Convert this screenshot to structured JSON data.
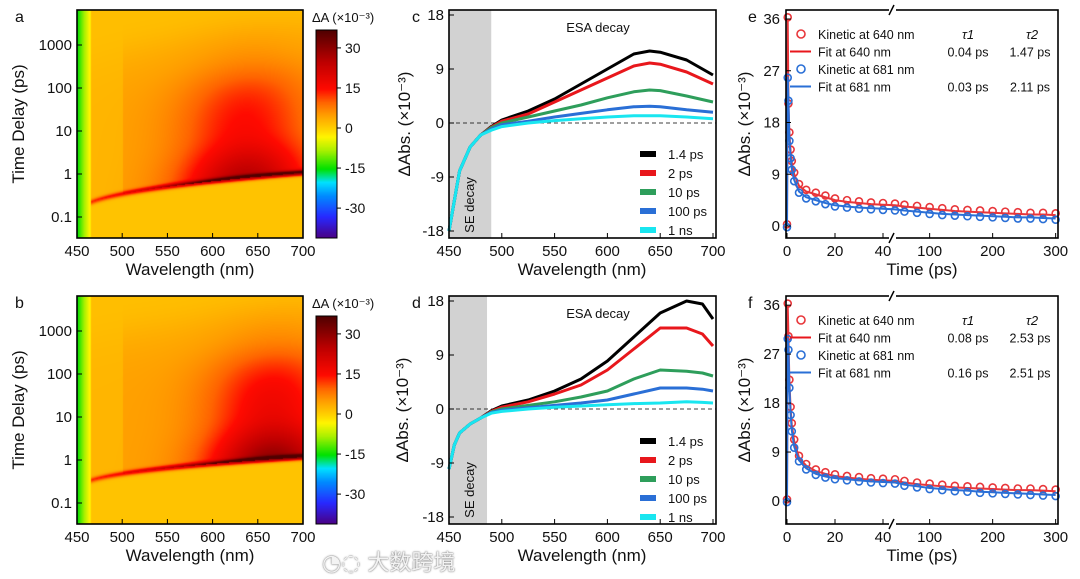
{
  "watermark": {
    "logo_text": "大数跨境"
  },
  "chart_data": [
    {
      "panel": "a",
      "type": "heatmap",
      "xlabel": "Wavelength (nm)",
      "ylabel": "Time Delay (ps)",
      "yscale": "log",
      "xlim": [
        450,
        700
      ],
      "ylim": [
        0.03,
        6500
      ],
      "xticks": [
        "450",
        "500",
        "550",
        "600",
        "650",
        "700"
      ],
      "yticks": [
        "1000",
        "100",
        "10",
        "1",
        "0.1"
      ],
      "ytick_values": [
        1000,
        100,
        10,
        1,
        0.1
      ],
      "colorbar": {
        "label": "ΔA (×10⁻³)",
        "range": [
          -41,
          37
        ],
        "ticks": [
          "30",
          "15",
          "0",
          "-15",
          "-30"
        ],
        "tick_values": [
          30,
          15,
          0,
          -15,
          -30
        ]
      },
      "features": {
        "chirp_start": [
          455,
          0.15
        ],
        "chirp_end": [
          700,
          1.1
        ],
        "esa_peak_nm": 635,
        "esa_peak_value": 25
      }
    },
    {
      "panel": "b",
      "type": "heatmap",
      "xlabel": "Wavelength (nm)",
      "ylabel": "Time Delay (ps)",
      "yscale": "log",
      "xlim": [
        450,
        700
      ],
      "ylim": [
        0.03,
        6500
      ],
      "xticks": [
        "450",
        "500",
        "550",
        "600",
        "650",
        "700"
      ],
      "yticks": [
        "1000",
        "100",
        "10",
        "1",
        "0.1"
      ],
      "ytick_values": [
        1000,
        100,
        10,
        1,
        0.1
      ],
      "colorbar": {
        "label": "ΔA (×10⁻³)",
        "range": [
          -41,
          37
        ],
        "ticks": [
          "30",
          "15",
          "0",
          "-15",
          "-30"
        ],
        "tick_values": [
          30,
          15,
          0,
          -15,
          -30
        ]
      },
      "features": {
        "chirp_start": [
          455,
          0.25
        ],
        "chirp_end": [
          700,
          1.2
        ],
        "esa_peak_nm": 665,
        "esa_peak_value": 30
      }
    },
    {
      "panel": "c",
      "type": "line",
      "xlabel": "Wavelength (nm)",
      "ylabel": "ΔAbs. (×10⁻³)",
      "xlim": [
        450,
        700
      ],
      "ylim": [
        -19.2,
        18.8
      ],
      "xticks": [
        "450",
        "500",
        "550",
        "600",
        "650",
        "700"
      ],
      "xtick_values": [
        450,
        500,
        550,
        600,
        650,
        700
      ],
      "yticks": [
        "18",
        "9",
        "0",
        "-9",
        "-18"
      ],
      "ytick_values": [
        18,
        9,
        0,
        -9,
        -18
      ],
      "annotations": {
        "esa": "ESA decay",
        "se": "SE decay",
        "se_region": [
          450,
          490
        ]
      },
      "x": [
        450,
        455,
        460,
        470,
        480,
        490,
        500,
        525,
        550,
        575,
        600,
        625,
        640,
        650,
        675,
        700
      ],
      "series": [
        {
          "name": "1.4 ps",
          "color": "#000000",
          "values": [
            -18,
            -13,
            -8,
            -4,
            -2,
            -0.6,
            0.5,
            2,
            4,
            6.5,
            9,
            11.5,
            12,
            11.8,
            10.5,
            8
          ]
        },
        {
          "name": "2 ps",
          "color": "#e8171c",
          "values": [
            -18,
            -13,
            -8,
            -4,
            -2,
            -0.7,
            0.3,
            1.5,
            3.5,
            5.5,
            7.5,
            9.5,
            10,
            9.8,
            8.5,
            6.5
          ]
        },
        {
          "name": "10 ps",
          "color": "#2e9e5b",
          "values": [
            -18,
            -13,
            -8,
            -4,
            -2,
            -0.8,
            0,
            1,
            2,
            3,
            4.2,
            5.2,
            5.5,
            5.4,
            4.5,
            3.5
          ]
        },
        {
          "name": "100 ps",
          "color": "#2a6fd6",
          "values": [
            -18,
            -13,
            -8,
            -4,
            -2,
            -1,
            -0.3,
            0.3,
            1,
            1.6,
            2.2,
            2.7,
            2.8,
            2.7,
            2.2,
            1.8
          ]
        },
        {
          "name": "1 ns",
          "color": "#19e6f0",
          "values": [
            -18,
            -13,
            -8,
            -4,
            -2,
            -1.2,
            -0.6,
            0,
            0.4,
            0.7,
            1,
            1.2,
            1.2,
            1.2,
            1,
            0.7
          ]
        }
      ]
    },
    {
      "panel": "d",
      "type": "line",
      "xlabel": "Wavelength (nm)",
      "ylabel": "ΔAbs. (×10⁻³)",
      "xlim": [
        450,
        700
      ],
      "ylim": [
        -19.2,
        18.8
      ],
      "xticks": [
        "450",
        "500",
        "550",
        "600",
        "650",
        "700"
      ],
      "xtick_values": [
        450,
        500,
        550,
        600,
        650,
        700
      ],
      "yticks": [
        "18",
        "9",
        "0",
        "-9",
        "-18"
      ],
      "ytick_values": [
        18,
        9,
        0,
        -9,
        -18
      ],
      "annotations": {
        "esa": "ESA decay",
        "se": "SE decay",
        "se_region": [
          450,
          486
        ]
      },
      "x": [
        450,
        455,
        460,
        470,
        480,
        490,
        500,
        525,
        550,
        575,
        600,
        625,
        650,
        675,
        690,
        700
      ],
      "series": [
        {
          "name": "1.4 ps",
          "color": "#000000",
          "values": [
            -10,
            -6,
            -4,
            -2.5,
            -1.5,
            -0.3,
            0.5,
            1.5,
            3,
            5,
            8,
            12,
            16,
            18,
            17.5,
            15
          ]
        },
        {
          "name": "2 ps",
          "color": "#e8171c",
          "values": [
            -10,
            -6,
            -4,
            -2.5,
            -1.5,
            -0.4,
            0.3,
            1.2,
            2.5,
            4,
            6.5,
            10,
            13.5,
            13.5,
            12.5,
            10.5
          ]
        },
        {
          "name": "10 ps",
          "color": "#2e9e5b",
          "values": [
            -10,
            -6,
            -4,
            -2.5,
            -1.5,
            -0.5,
            0,
            0.6,
            1.2,
            2,
            3,
            5,
            6.5,
            6.3,
            6,
            5.5
          ]
        },
        {
          "name": "100 ps",
          "color": "#2a6fd6",
          "values": [
            -10,
            -6,
            -4,
            -2.5,
            -1.5,
            -0.6,
            -0.2,
            0.2,
            0.6,
            1,
            1.5,
            2.5,
            3.5,
            3.5,
            3.3,
            3
          ]
        },
        {
          "name": "1 ns",
          "color": "#19e6f0",
          "values": [
            -10,
            -6,
            -4,
            -2.5,
            -1.5,
            -0.7,
            -0.4,
            0,
            0.3,
            0.5,
            0.7,
            0.9,
            1,
            1.2,
            1.1,
            1
          ]
        }
      ]
    },
    {
      "panel": "e",
      "type": "scatter",
      "xlabel": "Time (ps)",
      "ylabel": "ΔAbs. (×10⁻³)",
      "xlim": [
        0,
        300
      ],
      "x_break": [
        45,
        45
      ],
      "ylim": [
        -2,
        37.5
      ],
      "xticks": [
        "0",
        "20",
        "40",
        "100",
        "200",
        "300"
      ],
      "xtick_values": [
        0,
        20,
        40,
        100,
        200,
        300
      ],
      "yticks": [
        "36",
        "27",
        "18",
        "9",
        "0"
      ],
      "ytick_values": [
        36,
        27,
        18,
        9,
        0
      ],
      "legend": {
        "tau1_header": "τ1",
        "tau2_header": "τ2",
        "entries": [
          {
            "label": "Kinetic at 640 nm",
            "kind": "marker",
            "color": "#e8363a"
          },
          {
            "label": "Fit at 640 nm",
            "kind": "line",
            "color": "#e8171c",
            "tau1": "0.04 ps",
            "tau2": "1.47 ps"
          },
          {
            "label": "Kinetic at 681 nm",
            "kind": "marker",
            "color": "#2a6fd6"
          },
          {
            "label": "Fit at 681 nm",
            "kind": "line",
            "color": "#2a6fd6",
            "tau1": "0.03 ps",
            "tau2": "2.11 ps"
          }
        ]
      },
      "x": [
        0,
        0.3,
        0.6,
        1,
        1.5,
        2,
        3,
        5,
        8,
        12,
        16,
        20,
        25,
        30,
        35,
        40,
        45,
        60,
        80,
        100,
        120,
        140,
        160,
        180,
        200,
        220,
        240,
        260,
        280,
        300
      ],
      "series": [
        {
          "name": "640 nm",
          "color": "#e8363a",
          "values": [
            0,
            36,
            21,
            16,
            13,
            11,
            9,
            7,
            6,
            5.5,
            5,
            4.5,
            4.2,
            4,
            3.8,
            3.7,
            3.6,
            3.4,
            3.2,
            3,
            2.8,
            2.6,
            2.5,
            2.4,
            2.3,
            2.2,
            2.1,
            2,
            2,
            1.9
          ]
        },
        {
          "name": "681 nm",
          "color": "#2a6fd6",
          "values": [
            0,
            26,
            22,
            15,
            12,
            10,
            8,
            6,
            5,
            4.5,
            4,
            3.6,
            3.4,
            3.2,
            3.1,
            3,
            2.9,
            2.7,
            2.5,
            2.3,
            2.1,
            2,
            1.9,
            1.8,
            1.7,
            1.6,
            1.5,
            1.5,
            1.4,
            1.3
          ]
        }
      ]
    },
    {
      "panel": "f",
      "type": "scatter",
      "xlabel": "Time (ps)",
      "ylabel": "ΔAbs. (×10⁻³)",
      "xlim": [
        0,
        300
      ],
      "x_break": [
        45,
        45
      ],
      "ylim": [
        -4,
        37.9
      ],
      "xticks": [
        "0",
        "20",
        "40",
        "100",
        "200",
        "300"
      ],
      "xtick_values": [
        0,
        20,
        40,
        100,
        200,
        300
      ],
      "yticks": [
        "36",
        "27",
        "18",
        "9",
        "0"
      ],
      "ytick_values": [
        36,
        27,
        18,
        9,
        0
      ],
      "legend": {
        "tau1_header": "τ1",
        "tau2_header": "τ2",
        "entries": [
          {
            "label": "Kinetic at 640 nm",
            "kind": "marker",
            "color": "#e8363a"
          },
          {
            "label": "Fit at 640 nm",
            "kind": "line",
            "color": "#e8171c",
            "tau1": "0.08 ps",
            "tau2": "2.53 ps"
          },
          {
            "label": "Kinetic at 681 nm",
            "kind": "marker",
            "color": "#2a6fd6"
          },
          {
            "label": "Fit at 681 nm",
            "kind": "line",
            "color": "#2a6fd6",
            "tau1": "0.16 ps",
            "tau2": "2.51 ps"
          }
        ]
      },
      "x": [
        0,
        0.3,
        0.6,
        1,
        1.5,
        2,
        3,
        5,
        8,
        12,
        16,
        20,
        25,
        30,
        35,
        40,
        45,
        60,
        80,
        100,
        120,
        140,
        160,
        180,
        200,
        220,
        240,
        260,
        280,
        300
      ],
      "series": [
        {
          "name": "640 nm",
          "color": "#e8363a",
          "values": [
            0,
            36,
            30,
            22,
            17,
            14,
            11,
            8,
            6.5,
            5.5,
            5,
            4.6,
            4.3,
            4.1,
            3.9,
            3.8,
            3.7,
            3.4,
            3.1,
            2.9,
            2.7,
            2.5,
            2.4,
            2.3,
            2.2,
            2.1,
            2,
            2,
            1.9,
            1.8
          ]
        },
        {
          "name": "681 nm",
          "color": "#2a6fd6",
          "values": [
            0,
            30,
            28,
            21,
            16,
            13,
            10,
            7.5,
            6,
            5,
            4.5,
            4.2,
            4,
            3.8,
            3.6,
            3.5,
            3.4,
            3,
            2.7,
            2.4,
            2.2,
            2,
            1.9,
            1.7,
            1.6,
            1.5,
            1.4,
            1.3,
            1.2,
            1.1
          ]
        }
      ]
    }
  ]
}
